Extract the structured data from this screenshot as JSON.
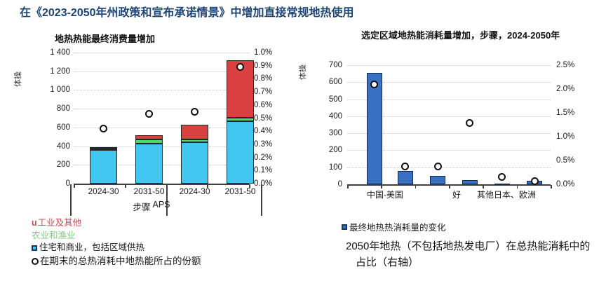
{
  "page_title": "在《2023-2050年州政策和宣布承诺情景》中增加直接常规地热使用",
  "colors": {
    "title_navy": "#1F4576",
    "bar_cyan": "#41C7F0",
    "bar_green": "#4ADB64",
    "bar_red": "#D8413F",
    "bar_royal_blue": "#3A70C2",
    "bar_border_dark": "#262626",
    "bar_border_navy": "#0F2D52",
    "legend_red_text": "#C0504D",
    "legend_green_text": "#7EC87F",
    "axis_line": "#404040",
    "gridline": "#C8C8C8"
  },
  "chart_data": [
    {
      "type": "bar",
      "stacked": true,
      "title": "地热热能最终消费量增加",
      "y_axis_label": "体操",
      "ylim_left": [
        0,
        1400
      ],
      "ylim_right_pct": [
        0,
        1.0
      ],
      "yticks_left": [
        "1 400",
        "1 200",
        "1 000",
        "800",
        "600",
        "400",
        "200",
        "0"
      ],
      "yticks_right": [
        "1.0%",
        "0.9%",
        "0.8%",
        "0.7%",
        "0.6%",
        "0.5%",
        "0.4%",
        "0.3%",
        "0.2%",
        "0.1%",
        "0.0%"
      ],
      "grid": true,
      "legend_position": "bottom-left",
      "categories": [
        "2024-30",
        "2031-50",
        "2024-30",
        "2031-50"
      ],
      "x_labels": [
        {
          "text": "2024-30",
          "cx": 0.17
        },
        {
          "text": "2031-50",
          "cx": 0.43
        },
        {
          "text": "2024-30",
          "cx": 0.69
        },
        {
          "text": "2031-50",
          "cx": 0.95
        }
      ],
      "group_labels": [
        {
          "text": "步骤",
          "cx": 0.388
        },
        {
          "text": "APS",
          "cx": 0.5
        }
      ],
      "series": [
        {
          "name": "住宅和商业，包括区域供热",
          "color": "#41C7F0",
          "values": [
            360,
            430,
            445,
            665
          ]
        },
        {
          "name": "农业和渔业",
          "color": "#4ADB64",
          "values": [
            12,
            45,
            25,
            40
          ]
        },
        {
          "name": "工业及其他",
          "color": "#D8413F",
          "values": [
            20,
            45,
            160,
            610
          ]
        }
      ],
      "markers": {
        "name": "在期末的总热消耗中地热能所占的份额",
        "axis": "right",
        "values_pct": [
          0.42,
          0.53,
          0.55,
          0.89
        ]
      }
    },
    {
      "type": "bar",
      "stacked": false,
      "title": "选定区域地热能消耗量增加，步骤，2024-2050年",
      "y_axis_label": "体操",
      "ylim_left": [
        0,
        700
      ],
      "ylim_right_pct": [
        0,
        2.5
      ],
      "yticks_left": [
        "700",
        "600",
        "500",
        "400",
        "300",
        "200",
        "100",
        "0"
      ],
      "yticks_right": [
        "2.5%",
        "2.0%",
        "1.5%",
        "1.0%",
        "0.5%",
        "0.0%"
      ],
      "grid": true,
      "legend_position": "bottom-left",
      "x_labels": [
        {
          "text": "中国-美国",
          "cx": 0.186
        },
        {
          "text": "好",
          "cx": 0.538
        },
        {
          "text": "其他日本、欧洲",
          "cx": 0.783
        }
      ],
      "group_labels": [],
      "series": [
        {
          "name": "最终地热热消耗量的变化",
          "color": "#3A70C2",
          "values": [
            655,
            80,
            50,
            25,
            5,
            20
          ]
        }
      ],
      "markers": {
        "name": "2050年地热（不包括地热发电厂）在总热能消耗中的占比（右轴）",
        "axis": "right",
        "values_pct": [
          2.1,
          0.37,
          0.38,
          1.28,
          0.15,
          0.06
        ]
      }
    }
  ],
  "legend_left": {
    "items": [
      {
        "marker": "u",
        "label": "工业及其他"
      },
      {
        "marker": "",
        "label": "农业和渔业"
      },
      {
        "marker": "square-cyan",
        "label": "住宅和商业，包括区域供热"
      },
      {
        "marker": "ring",
        "label": "在期末的总热消耗中地热能所占的份额"
      }
    ]
  },
  "legend_right": {
    "items": [
      {
        "marker": "square-blue",
        "label": "最终地热热消耗量的变化"
      }
    ]
  },
  "caption": "2050年地热（不包括地热发电厂）在总热能消耗中的占比（右轴）"
}
